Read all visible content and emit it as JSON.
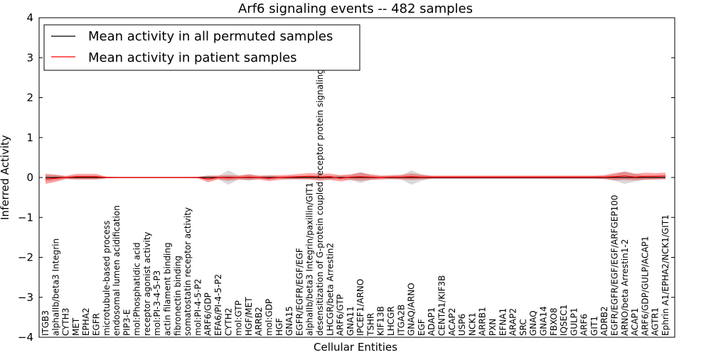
{
  "chart_data": {
    "type": "line",
    "title": "Arf6 signaling events -- 482 samples",
    "xlabel": "Cellular Entities",
    "ylabel": "Inferred Activity",
    "ylim": [
      -4,
      4
    ],
    "yticks": [
      "−4",
      "−3",
      "−2",
      "−1",
      "0",
      "1",
      "2",
      "3",
      "4"
    ],
    "grid": false,
    "legend_position": "top-left",
    "legend": [
      {
        "label": "Mean activity in all permuted samples",
        "color": "#000000"
      },
      {
        "label": "Mean activity in patient samples",
        "color": "#ff0000"
      }
    ],
    "categories": [
      "ITGB3",
      "alphaIIb/beta3 Integrin",
      "CYTH3",
      "MET",
      "EPHA2",
      "EGFR",
      "microtubule-based process",
      "endosomal lumen acidification",
      "PIP3-E",
      "mol:Phosphatidic acid",
      "receptor agonist activity",
      "mol:PI-3-4-5-P3",
      "actin filament binding",
      "fibronectin binding",
      "somatostatin receptor activity",
      "mol:PI-4-5-P2",
      "ARF6/GDP",
      "EFA6/PI-4-5-P2",
      "CYTH2",
      "mol:GTP",
      "HGF/MET",
      "ARRB2",
      "mol:GDP",
      "HGF",
      "GNA15",
      "EGFR/EGFR/EGF/EGF",
      "alphaIIb/beta3 Integrin/paxillin/GIT1",
      "desensitization of G-protein coupled receptor protein signaling pathway",
      "LHCGR/beta Arrestin2",
      "ARF6/GTP",
      "GNA11",
      "IPCEF1/ARNO",
      "TSHR",
      "KIF13B",
      "LHCGR",
      "ITGA2B",
      "GNAQ/ARNO",
      "EGF",
      "ADAP1",
      "CENTA1/KIF3B",
      "ACAP2",
      "USP6",
      "NCK1",
      "ARRB1",
      "PXN",
      "EFNA1",
      "ARAP2",
      "SRC",
      "GNAQ",
      "GNA14",
      "FBXO8",
      "IQSEC1",
      "GULP1",
      "ARF6",
      "GIT1",
      "ADRB2",
      "EGFR/EGFR/EGF/EGF/ARFGEP100",
      "ARNO/beta Arrestin1-2",
      "ACAP1",
      "ARF6/GDP/GULP/ACAP1",
      "AGTR1",
      "Ephrin A1/EPHA2/NCK1/GIT1"
    ],
    "series": [
      {
        "name": "Mean activity in all permuted samples",
        "color": "#000000",
        "values": [
          0,
          0,
          0,
          0,
          0,
          0,
          0,
          0,
          0,
          0,
          0,
          0,
          0,
          0,
          0,
          0,
          0,
          0,
          0,
          0,
          0,
          0,
          0,
          0,
          0,
          0,
          0,
          0,
          0,
          0,
          0,
          0,
          0,
          0,
          0,
          0,
          0,
          0,
          0,
          0,
          0,
          0,
          0,
          0,
          0,
          0,
          0,
          0,
          0,
          0,
          0,
          0,
          0,
          0,
          0,
          0,
          0,
          0,
          0,
          0,
          0,
          0
        ],
        "band": [
          0.1,
          0.07,
          0.03,
          0.05,
          0.05,
          0.05,
          0.02,
          0.01,
          0.01,
          0.01,
          0.01,
          0.01,
          0.01,
          0.01,
          0.01,
          0.01,
          0.06,
          0.04,
          0.18,
          0.05,
          0.08,
          0.04,
          0.06,
          0.03,
          0.04,
          0.04,
          0.05,
          0.06,
          0.05,
          0.05,
          0.06,
          0.14,
          0.06,
          0.04,
          0.04,
          0.05,
          0.18,
          0.08,
          0.03,
          0.03,
          0.03,
          0.03,
          0.03,
          0.03,
          0.03,
          0.03,
          0.03,
          0.03,
          0.03,
          0.03,
          0.03,
          0.03,
          0.03,
          0.03,
          0.03,
          0.04,
          0.08,
          0.16,
          0.1,
          0.05,
          0.05,
          0.05
        ]
      },
      {
        "name": "Mean activity in patient samples",
        "color": "#ff0000",
        "values": [
          -0.04,
          -0.02,
          0,
          0.02,
          0.02,
          0.02,
          0,
          0,
          0,
          0,
          0,
          0,
          0,
          0,
          0,
          0,
          -0.04,
          0,
          -0.01,
          0,
          0.01,
          0,
          -0.02,
          0,
          0.01,
          0.02,
          0.03,
          0.01,
          0.02,
          -0.02,
          0.01,
          0.02,
          0.01,
          0,
          0.01,
          0.01,
          0.02,
          0.01,
          0.01,
          0.01,
          0.01,
          0.01,
          0.01,
          0.01,
          0.01,
          0.01,
          0.01,
          0.01,
          0.01,
          0.01,
          0.01,
          0.01,
          0.01,
          0.01,
          0.01,
          0.01,
          0.02,
          0.04,
          0.01,
          0.03,
          0.03,
          0.04
        ],
        "band": [
          0.12,
          0.09,
          0.04,
          0.07,
          0.07,
          0.07,
          0.02,
          0.01,
          0.01,
          0.01,
          0.01,
          0.01,
          0.01,
          0.01,
          0.01,
          0.02,
          0.08,
          0.05,
          0.07,
          0.05,
          0.07,
          0.05,
          0.07,
          0.06,
          0.06,
          0.07,
          0.08,
          0.09,
          0.08,
          0.08,
          0.07,
          0.1,
          0.07,
          0.05,
          0.05,
          0.06,
          0.08,
          0.06,
          0.04,
          0.04,
          0.04,
          0.04,
          0.04,
          0.04,
          0.04,
          0.04,
          0.04,
          0.04,
          0.04,
          0.04,
          0.04,
          0.04,
          0.04,
          0.04,
          0.04,
          0.05,
          0.09,
          0.1,
          0.08,
          0.09,
          0.08,
          0.08
        ]
      }
    ]
  }
}
